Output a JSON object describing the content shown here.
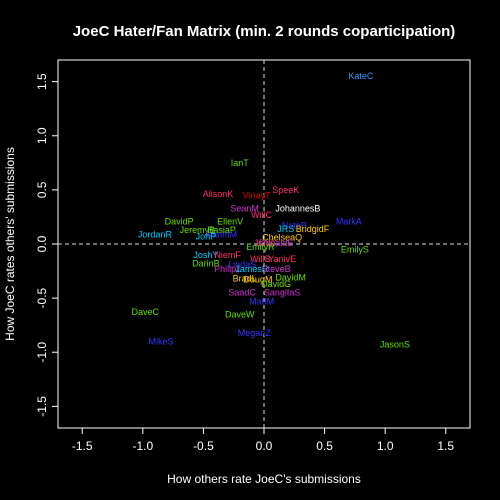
{
  "chart_data": {
    "type": "scatter",
    "title": "JoeC Hater/Fan Matrix (min. 2 rounds coparticipation)",
    "xlabel": "How others rate JoeC's submissions",
    "ylabel": "How JoeC rates others' submissions",
    "xlim": [
      -1.7,
      1.7
    ],
    "ylim": [
      -1.7,
      1.7
    ],
    "xticks": [
      -1.5,
      -1.0,
      -0.5,
      0.0,
      0.5,
      1.0,
      1.5
    ],
    "yticks": [
      -1.5,
      -1.0,
      -0.5,
      0.0,
      0.5,
      1.0,
      1.5
    ],
    "tick_labels": [
      "-1.5",
      "-1.0",
      "-0.5",
      "0.0",
      "0.5",
      "1.0",
      "1.5"
    ],
    "reference_lines": {
      "x": 0,
      "y": 0,
      "style": "dashed"
    },
    "background": "#000000",
    "foreground": "#ffffff",
    "points": [
      {
        "label": "KateC",
        "x": 0.8,
        "y": 1.55,
        "color": "#3399ff"
      },
      {
        "label": "IanT",
        "x": -0.2,
        "y": 0.75,
        "color": "#66dd00"
      },
      {
        "label": "SpeeK",
        "x": 0.18,
        "y": 0.5,
        "color": "#ff3366"
      },
      {
        "label": "AlisonK",
        "x": -0.38,
        "y": 0.46,
        "color": "#ff3366"
      },
      {
        "label": "VinayT",
        "x": -0.06,
        "y": 0.45,
        "color": "#dd0000"
      },
      {
        "label": "JohannesB",
        "x": 0.28,
        "y": 0.33,
        "color": "#ffffff"
      },
      {
        "label": "SeanM",
        "x": -0.16,
        "y": 0.33,
        "color": "#cc33cc"
      },
      {
        "label": "WillC",
        "x": -0.02,
        "y": 0.27,
        "color": "#ff3366"
      },
      {
        "label": "DavidP",
        "x": -0.7,
        "y": 0.21,
        "color": "#66dd00"
      },
      {
        "label": "EllenV",
        "x": -0.28,
        "y": 0.21,
        "color": "#66dd00"
      },
      {
        "label": "MarkA",
        "x": 0.7,
        "y": 0.21,
        "color": "#3333ff"
      },
      {
        "label": "NateP",
        "x": 0.25,
        "y": 0.17,
        "color": "#3333ff"
      },
      {
        "label": "JeremyB",
        "x": -0.55,
        "y": 0.13,
        "color": "#66dd00"
      },
      {
        "label": "BasiaP",
        "x": -0.35,
        "y": 0.13,
        "color": "#66dd00"
      },
      {
        "label": "JRS",
        "x": 0.18,
        "y": 0.14,
        "color": "#00ccff"
      },
      {
        "label": "BridgidF",
        "x": 0.4,
        "y": 0.14,
        "color": "#ffcc00"
      },
      {
        "label": "JordanR",
        "x": -0.9,
        "y": 0.09,
        "color": "#00ccff"
      },
      {
        "label": "KarimM",
        "x": -0.35,
        "y": 0.09,
        "color": "#3333ff"
      },
      {
        "label": "JonP",
        "x": -0.48,
        "y": 0.07,
        "color": "#00ccff"
      },
      {
        "label": "ChelseaQ",
        "x": 0.15,
        "y": 0.06,
        "color": "#ffcc00"
      },
      {
        "label": "JonS",
        "x": 0.0,
        "y": 0.01,
        "color": "#ff3366"
      },
      {
        "label": "DonaldE",
        "x": 0.1,
        "y": 0.01,
        "color": "#cc33cc"
      },
      {
        "label": "EmilyR",
        "x": -0.03,
        "y": -0.03,
        "color": "#66dd00"
      },
      {
        "label": "EmilyS",
        "x": 0.75,
        "y": -0.05,
        "color": "#66dd00"
      },
      {
        "label": "JoshY",
        "x": -0.48,
        "y": -0.1,
        "color": "#00ccff"
      },
      {
        "label": "NiemF",
        "x": -0.3,
        "y": -0.1,
        "color": "#ff3366"
      },
      {
        "label": "WillB",
        "x": -0.03,
        "y": -0.14,
        "color": "#ff3366"
      },
      {
        "label": "YanivE",
        "x": 0.15,
        "y": -0.14,
        "color": "#ff3366"
      },
      {
        "label": "DarinB",
        "x": -0.48,
        "y": -0.18,
        "color": "#66dd00"
      },
      {
        "label": "LindaS",
        "x": -0.18,
        "y": -0.19,
        "color": "#3333ff"
      },
      {
        "label": "PhilipL",
        "x": -0.3,
        "y": -0.23,
        "color": "#cc33cc"
      },
      {
        "label": "JamesR",
        "x": -0.1,
        "y": -0.23,
        "color": "#00ccff"
      },
      {
        "label": "SteveB",
        "x": 0.1,
        "y": -0.23,
        "color": "#cc33cc"
      },
      {
        "label": "BradL",
        "x": -0.16,
        "y": -0.32,
        "color": "#ffcc00"
      },
      {
        "label": "DougM",
        "x": -0.05,
        "y": -0.33,
        "color": "#ffcc00"
      },
      {
        "label": "DavidM",
        "x": 0.22,
        "y": -0.31,
        "color": "#66dd00"
      },
      {
        "label": "DavidG",
        "x": 0.1,
        "y": -0.37,
        "color": "#66dd00"
      },
      {
        "label": "SaadC",
        "x": -0.18,
        "y": -0.45,
        "color": "#cc33cc"
      },
      {
        "label": "SangitaS",
        "x": 0.15,
        "y": -0.45,
        "color": "#cc33cc"
      },
      {
        "label": "MattM",
        "x": -0.02,
        "y": -0.53,
        "color": "#3333ff"
      },
      {
        "label": "DaveC",
        "x": -0.98,
        "y": -0.63,
        "color": "#66dd00"
      },
      {
        "label": "DaveW",
        "x": -0.2,
        "y": -0.65,
        "color": "#66dd00"
      },
      {
        "label": "MeganZ",
        "x": -0.08,
        "y": -0.82,
        "color": "#3333ff"
      },
      {
        "label": "MikeS",
        "x": -0.85,
        "y": -0.9,
        "color": "#3333ff"
      },
      {
        "label": "JasonS",
        "x": 1.08,
        "y": -0.93,
        "color": "#66dd00"
      }
    ]
  }
}
